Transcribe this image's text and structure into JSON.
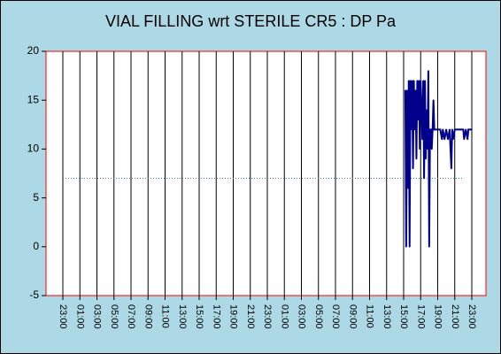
{
  "chart_data": {
    "type": "line",
    "title": "VIAL FILLING wrt STERILE CR5 : DP Pa",
    "xlabel": "",
    "ylabel": "",
    "ylim": [
      -5,
      20
    ],
    "y_ticks": [
      "20",
      "15",
      "10",
      "5",
      "0",
      "-5"
    ],
    "x_ticks": [
      "23:00",
      "01:00",
      "03:00",
      "05:00",
      "07:00",
      "09:00",
      "11:00",
      "13:00",
      "15:00",
      "17:00",
      "19:00",
      "21:00",
      "23:00",
      "01:00",
      "03:00",
      "05:00",
      "07:00",
      "09:00",
      "11:00",
      "13:00",
      "15:00",
      "17:00",
      "19:00",
      "21:00",
      "23:00"
    ],
    "colors": {
      "background": "#add8e6",
      "plot": "#ffffff",
      "border": "#ff0000",
      "series": "#00008b",
      "threshold": "#2e8b8b"
    },
    "series": [
      {
        "name": "DP Pa",
        "points": [
          [
            40.2,
            16
          ],
          [
            40.3,
            0
          ],
          [
            40.4,
            16
          ],
          [
            40.5,
            6
          ],
          [
            40.6,
            17
          ],
          [
            40.7,
            0
          ],
          [
            40.8,
            17
          ],
          [
            40.9,
            12
          ],
          [
            41.0,
            17
          ],
          [
            41.1,
            8
          ],
          [
            41.2,
            17
          ],
          [
            41.3,
            12
          ],
          [
            41.4,
            16
          ],
          [
            41.5,
            9
          ],
          [
            41.6,
            17
          ],
          [
            41.7,
            13
          ],
          [
            41.8,
            17
          ],
          [
            41.9,
            10
          ],
          [
            42.0,
            17
          ],
          [
            42.1,
            14
          ],
          [
            42.2,
            11
          ],
          [
            42.3,
            17
          ],
          [
            42.4,
            7
          ],
          [
            42.5,
            17
          ],
          [
            42.6,
            9
          ],
          [
            42.7,
            14
          ],
          [
            42.8,
            10
          ],
          [
            42.9,
            18
          ],
          [
            43.0,
            0
          ],
          [
            43.1,
            12
          ],
          [
            43.2,
            12
          ],
          [
            43.3,
            10
          ],
          [
            43.4,
            12
          ],
          [
            43.5,
            15
          ],
          [
            43.6,
            12
          ],
          [
            44.0,
            12
          ],
          [
            44.3,
            12
          ],
          [
            44.5,
            11
          ],
          [
            44.6,
            12
          ],
          [
            44.8,
            11
          ],
          [
            45.0,
            12
          ],
          [
            45.2,
            11
          ],
          [
            45.4,
            12
          ],
          [
            45.6,
            8
          ],
          [
            45.7,
            12
          ],
          [
            45.8,
            11
          ],
          [
            46.0,
            12
          ],
          [
            46.5,
            12
          ],
          [
            47.0,
            12
          ],
          [
            47.1,
            11
          ],
          [
            47.3,
            12
          ],
          [
            47.5,
            11
          ],
          [
            47.6,
            12
          ],
          [
            48.0,
            12
          ]
        ]
      },
      {
        "name": "threshold",
        "points": [
          [
            0,
            7
          ],
          [
            47.0,
            7
          ]
        ]
      }
    ]
  }
}
